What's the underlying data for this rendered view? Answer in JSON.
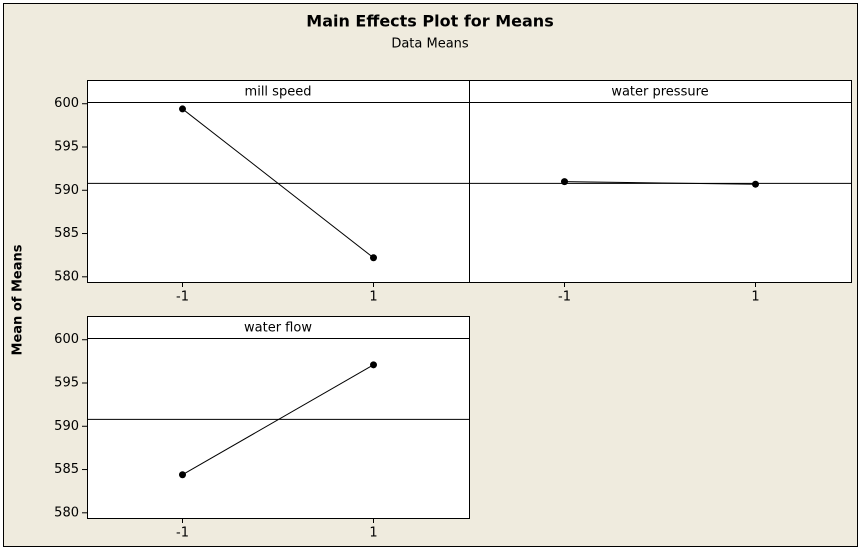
{
  "chart_data": {
    "type": "line",
    "title": "Main Effects Plot for Means",
    "subtitle": "Data Means",
    "ylabel": "Mean of Means",
    "ylim": [
      579.4,
      600.2
    ],
    "yticks": [
      580,
      585,
      590,
      595,
      600
    ],
    "xlim": [
      -2,
      2
    ],
    "xticks": [
      -1,
      1
    ],
    "reference_line": 590.8,
    "color": "#000000",
    "panels": [
      {
        "title": "mill speed",
        "x": [
          -1,
          1
        ],
        "values": [
          599.4,
          582.2
        ]
      },
      {
        "title": "water pressure",
        "x": [
          -1,
          1
        ],
        "values": [
          591.0,
          590.7
        ]
      },
      {
        "title": "water flow",
        "x": [
          -1,
          1
        ],
        "values": [
          584.4,
          597.1
        ]
      }
    ]
  }
}
